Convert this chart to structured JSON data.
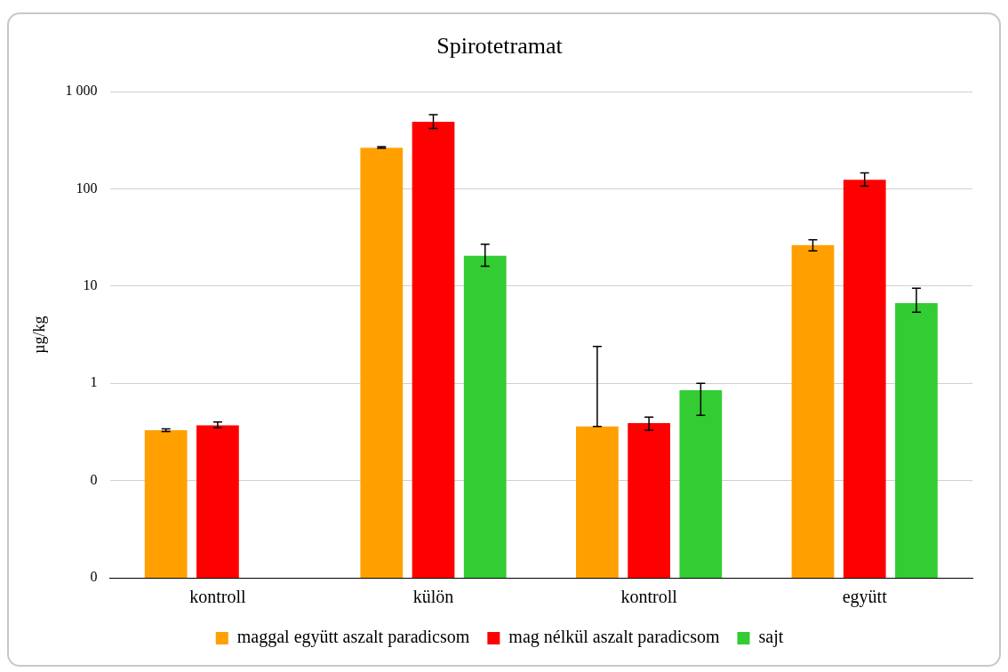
{
  "chart_data": {
    "type": "bar",
    "title": "Spirotetramat",
    "ylabel": "µg/kg",
    "categories": [
      "kontroll",
      "külön",
      "kontroll",
      "együtt"
    ],
    "series": [
      {
        "name": "maggal együtt aszalt paradicsom",
        "color": "#ffa000",
        "values": [
          0.33,
          265,
          0.36,
          26.5
        ],
        "errors": [
          [
            0.32,
            0.34
          ],
          [
            262,
            272
          ],
          [
            0.36,
            2.4
          ],
          [
            23,
            30
          ]
        ]
      },
      {
        "name": "mag nélkül aszalt paradicsom",
        "color": "#ff0000",
        "values": [
          0.37,
          490,
          0.39,
          124
        ],
        "errors": [
          [
            0.35,
            0.4
          ],
          [
            420,
            580
          ],
          [
            0.33,
            0.45
          ],
          [
            107,
            146
          ]
        ]
      },
      {
        "name": "sajt",
        "color": "#33cc33",
        "values": [
          null,
          20.5,
          0.85,
          6.7
        ],
        "errors": [
          null,
          [
            16,
            27
          ],
          [
            0.47,
            1.0
          ],
          [
            5.4,
            9.5
          ]
        ]
      }
    ],
    "log": "y",
    "ylim": [
      0.01,
      1000
    ],
    "yticks": [
      {
        "value": 0.01,
        "label": "0"
      },
      {
        "value": 0.1,
        "label": "0"
      },
      1,
      10,
      100,
      {
        "value": 1000,
        "label": "1 000"
      }
    ],
    "grid": "y",
    "legend": "bottom"
  }
}
